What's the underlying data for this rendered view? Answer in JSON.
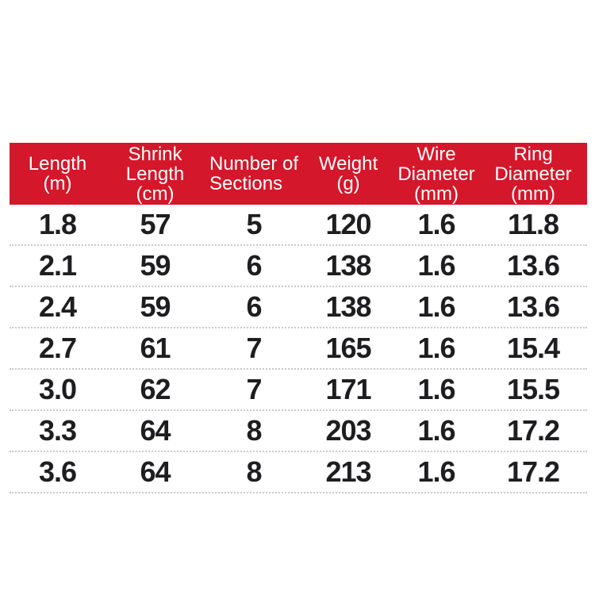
{
  "colors": {
    "header_bg": "#d4172a",
    "header_text": "#ffffff",
    "cell_text": "#1e1e20",
    "divider": "#c9c9c9",
    "page_bg": "#ffffff"
  },
  "chart_data": {
    "type": "table",
    "title": "",
    "columns": [
      {
        "label": "Length (m)",
        "lines": [
          "Length",
          "(m)"
        ]
      },
      {
        "label": "Shrink Length (cm)",
        "lines": [
          "Shrink",
          "Length",
          "(cm)"
        ]
      },
      {
        "label": "Number of Sections",
        "lines": [
          "Number of",
          "Sections"
        ]
      },
      {
        "label": "Weight (g)",
        "lines": [
          "Weight",
          "(g)"
        ]
      },
      {
        "label": "Wire Diameter (mm)",
        "lines": [
          "Wire",
          "Diameter",
          "(mm)"
        ]
      },
      {
        "label": "Ring Diameter (mm)",
        "lines": [
          "Ring",
          "Diameter",
          "(mm)"
        ]
      }
    ],
    "rows": [
      [
        "1.8",
        "57",
        "5",
        "120",
        "1.6",
        "11.8"
      ],
      [
        "2.1",
        "59",
        "6",
        "138",
        "1.6",
        "13.6"
      ],
      [
        "2.4",
        "59",
        "6",
        "138",
        "1.6",
        "13.6"
      ],
      [
        "2.7",
        "61",
        "7",
        "165",
        "1.6",
        "15.4"
      ],
      [
        "3.0",
        "62",
        "7",
        "171",
        "1.6",
        "15.5"
      ],
      [
        "3.3",
        "64",
        "8",
        "203",
        "1.6",
        "17.2"
      ],
      [
        "3.6",
        "64",
        "8",
        "213",
        "1.6",
        "17.2"
      ]
    ]
  }
}
